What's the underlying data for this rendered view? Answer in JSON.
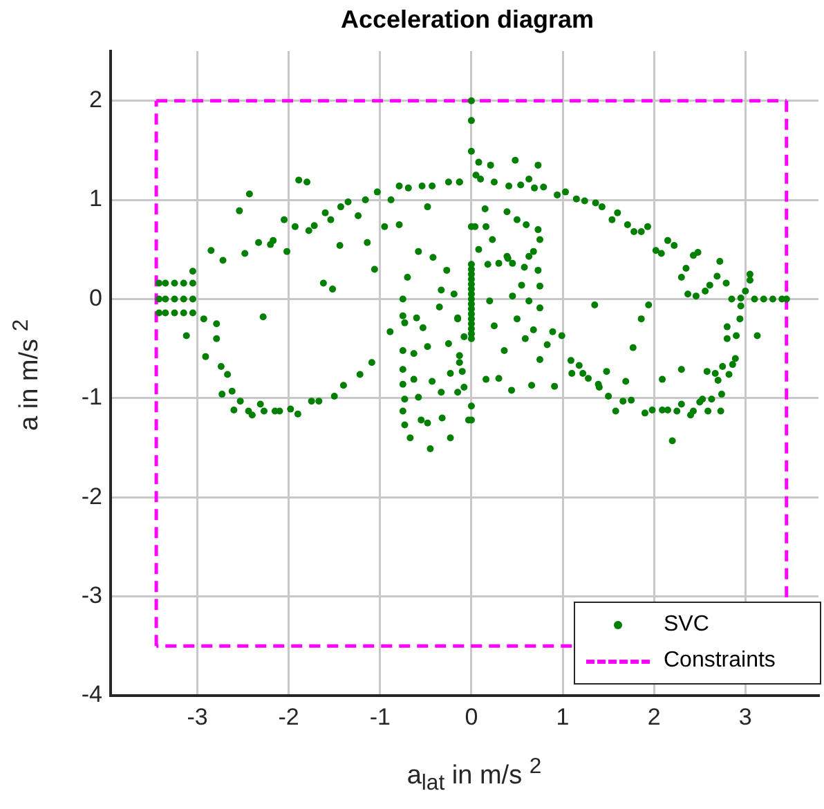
{
  "chart_data": {
    "type": "scatter",
    "title": "Acceleration diagram",
    "xlabel": "a$_{lat}$ in m/s $^{2}$",
    "ylabel": "a in m/s $^{2}$",
    "xlim": [
      -3.95,
      3.8
    ],
    "ylim": [
      -4,
      2.5
    ],
    "xticks": [
      -3,
      -2,
      -1,
      0,
      1,
      2,
      3
    ],
    "yticks": [
      -4,
      -3,
      -2,
      -1,
      0,
      1,
      2
    ],
    "grid": true,
    "legend": "bottom right",
    "series": [
      {
        "name": "SVC",
        "type": "scatter",
        "marker": "circle",
        "color": "#007f00",
        "x": [
          -3.42,
          -3.35,
          -3.25,
          -3.15,
          -3.05,
          -3.42,
          -3.35,
          -3.25,
          -3.15,
          -3.05,
          -3.42,
          -3.35,
          -3.25,
          -3.15,
          -3.05,
          -3.05,
          -2.85,
          -2.72,
          -2.54,
          -2.43,
          -2.48,
          -2.33,
          -2.2,
          -2.17,
          -2.05,
          -2.02,
          -1.89,
          -1.8,
          -1.93,
          -1.78,
          -1.72,
          -1.6,
          -1.54,
          -1.43,
          -1.35,
          -1.24,
          -1.16,
          -1.03,
          -0.88,
          -0.79,
          -0.69,
          -0.54,
          -0.43,
          -0.25,
          -0.13,
          -1.44,
          -1.62,
          -1.52,
          -1.14,
          -1.06,
          -0.95,
          -0.79,
          -0.48,
          -3.12,
          -2.93,
          -2.79,
          -2.79,
          -2.91,
          -2.74,
          -2.67,
          -2.73,
          -2.62,
          -2.6,
          -2.53,
          -2.44,
          -2.4,
          -2.31,
          -2.27,
          -2.15,
          -2.1,
          -1.98,
          -1.9,
          -1.75,
          -1.67,
          -1.5,
          -1.4,
          -1.22,
          -1.09,
          -0.89,
          -2.28,
          -0.75,
          -0.7,
          -0.58,
          -0.42,
          -0.27,
          -0.33,
          -0.19,
          -0.75,
          -0.73,
          -0.6,
          -0.53,
          -0.35,
          -0.15,
          -0.75,
          -0.63,
          -0.48,
          -0.25,
          -0.08,
          -0.75,
          -0.63,
          -0.43,
          -0.33,
          -0.23,
          -0.75,
          -0.73,
          -0.58,
          -0.75,
          -0.73,
          -0.67,
          -0.55,
          -0.48,
          -0.45,
          -0.32,
          -0.23,
          -0.08,
          -0.03,
          -0.13,
          0,
          0,
          0,
          0,
          0,
          0,
          0,
          0,
          0,
          0,
          0,
          0,
          0,
          0,
          0,
          0,
          0,
          0,
          0,
          0,
          0.08,
          0.21,
          0.48,
          0.73,
          0.05,
          0.1,
          0.25,
          0.41,
          0.54,
          0.63,
          0.69,
          0.79,
          -0.13,
          0.04,
          0.15,
          0.16,
          0.23,
          0.39,
          0.5,
          0.6,
          0.73,
          0.75,
          0.68,
          0.63,
          0.39,
          0.3,
          0.45,
          0.18,
          0.58,
          0.73,
          0.4,
          0.08,
          0.55,
          0.75,
          0.45,
          0.2,
          0.63,
          0.75,
          0.5,
          0.25,
          0.59,
          0.68,
          0.83,
          0.89,
          0.99,
          0.36,
          0.75,
          0.16,
          0.3,
          0.44,
          0.66,
          0.91,
          -0.15,
          -0.1,
          0,
          0,
          -0.15,
          -0.13,
          0.94,
          1.03,
          1.15,
          1.24,
          1.36,
          1.43,
          1.6,
          1.54,
          1.71,
          1.78,
          1.86,
          1.93,
          2.02,
          2.08,
          2.15,
          2.22,
          2.3,
          2.35,
          2.43,
          2.48,
          2.37,
          2.46,
          2.56,
          2.61,
          2.69,
          2.72,
          2.79,
          1.35,
          1.86,
          1.94,
          1.77,
          2.85,
          2.95,
          3.05,
          3.05,
          3,
          3.1,
          3.2,
          3.3,
          3.4,
          3.45,
          2.95,
          2.94,
          2.8,
          2.9,
          3.13,
          2.8,
          2.89,
          2.86,
          2.75,
          2.82,
          2.67,
          2.58,
          2.7,
          2.74,
          2.63,
          2.53,
          2.5,
          2.73,
          2.59,
          2.43,
          2.4,
          2.3,
          2.25,
          2.15,
          2.09,
          1.98,
          1.9,
          2.2,
          2.3,
          2.09,
          1.69,
          1.75,
          1.66,
          1.58,
          1.5,
          1.48,
          1.39,
          1.4,
          1.28,
          1.22,
          1.18,
          1.1,
          1.09
        ],
        "values": [
          0.16,
          0.16,
          0.16,
          0.16,
          0.16,
          0,
          0,
          0,
          0,
          0,
          -0.14,
          -0.14,
          -0.14,
          -0.14,
          -0.14,
          0.28,
          0.49,
          0.39,
          0.89,
          1.06,
          0.46,
          0.57,
          0.55,
          0.59,
          0.8,
          0.48,
          1.2,
          1.18,
          0.73,
          0.69,
          0.74,
          0.87,
          0.8,
          0.93,
          0.98,
          0.84,
          1,
          1.08,
          1,
          1.14,
          1.12,
          1.14,
          1.14,
          1.18,
          1.18,
          0.54,
          0.16,
          0.1,
          0.57,
          0.3,
          0.73,
          0.75,
          0.93,
          -0.37,
          -0.2,
          -0.25,
          -0.4,
          -0.58,
          -0.68,
          -0.76,
          -0.96,
          -0.93,
          -1.12,
          -1.03,
          -1.13,
          -1.17,
          -1.06,
          -1.13,
          -1.13,
          -1.13,
          -1.11,
          -1.16,
          -1.03,
          -1.03,
          -0.98,
          -0.87,
          -0.76,
          -0.64,
          -0.33,
          -0.18,
          0,
          0.22,
          0.48,
          0.42,
          0.29,
          0.09,
          0.05,
          -0.17,
          -0.24,
          -0.19,
          -0.29,
          -0.08,
          -0.19,
          -0.52,
          -0.55,
          -0.48,
          -0.45,
          -0.38,
          -0.71,
          -0.81,
          -0.83,
          -0.94,
          -0.75,
          -0.86,
          -1.01,
          -0.99,
          -1.13,
          -1.27,
          -1.4,
          -1.22,
          -1.25,
          -1.51,
          -1.2,
          -1.4,
          -0.89,
          -1.22,
          -0.64,
          -0.4,
          -0.35,
          -0.3,
          -0.25,
          -0.2,
          -0.15,
          -0.1,
          -0.05,
          0,
          0.05,
          0.1,
          0.15,
          0.2,
          0.25,
          0.3,
          0.35,
          2,
          1.8,
          1.49,
          0.73,
          1.38,
          1.35,
          1.4,
          1.35,
          1.25,
          1.21,
          1.18,
          1.14,
          1.15,
          1.21,
          1.12,
          1.13,
          1.18,
          0.73,
          0.91,
          0.73,
          0.6,
          0.88,
          0.8,
          0.75,
          0.7,
          0.6,
          0.48,
          0.43,
          0.43,
          0.36,
          0.36,
          0.35,
          0.32,
          0.29,
          0.41,
          0.5,
          0.14,
          0.13,
          0.03,
          -0.02,
          -0.02,
          -0.09,
          -0.2,
          -0.27,
          -0.4,
          -0.31,
          -0.46,
          -0.33,
          -0.37,
          -0.52,
          -0.61,
          -0.81,
          -0.8,
          -0.92,
          -0.87,
          -0.88,
          -0.94,
          -0.73,
          -1.08,
          -1.22,
          -0.2,
          -0.57,
          1.05,
          1.08,
          1.01,
          0.99,
          0.97,
          0.93,
          0.87,
          0.8,
          0.75,
          0.68,
          0.68,
          0.73,
          0.49,
          0.46,
          0.59,
          0.54,
          0.22,
          0.31,
          0.44,
          0.47,
          0.05,
          0.03,
          0.08,
          0.14,
          0.23,
          0.38,
          0.16,
          -0.06,
          -0.2,
          -0.06,
          -0.49,
          0,
          0.01,
          0.25,
          0.19,
          0.08,
          0,
          0,
          0,
          0,
          0,
          -0.07,
          -0.2,
          -0.28,
          -0.37,
          -0.37,
          -0.4,
          -0.6,
          -0.66,
          -0.68,
          -0.76,
          -0.75,
          -0.73,
          -0.82,
          -0.96,
          -1.01,
          -1.01,
          -1.04,
          -1.13,
          -1.13,
          -1.13,
          -1.17,
          -1.06,
          -1.13,
          -1.12,
          -1.12,
          -1.12,
          -1.15,
          -1.43,
          -0.71,
          -0.81,
          -0.83,
          -1.02,
          -1.03,
          -1.13,
          -0.98,
          -0.73,
          -0.86,
          -0.89,
          -0.8,
          -0.75,
          -0.67,
          -0.75,
          -0.62
        ]
      },
      {
        "name": "Constraints",
        "type": "line",
        "line_style": "dashed",
        "marker": "none",
        "color": "#ff00ff",
        "x": [
          1.1,
          -3.45,
          -3.45,
          3.45,
          3.45
        ],
        "values": [
          -3.5,
          -3.5,
          2,
          2,
          -3.05
        ]
      }
    ]
  }
}
